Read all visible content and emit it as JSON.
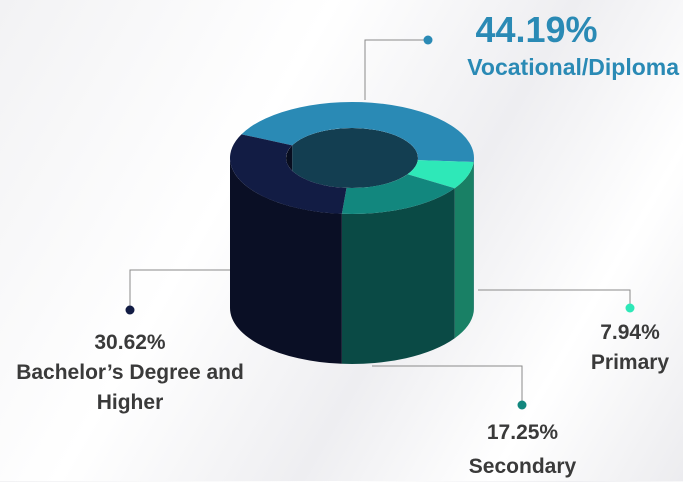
{
  "chart_data": {
    "type": "pie",
    "donut": true,
    "categories": [
      "Vocational/Diploma",
      "Primary",
      "Secondary",
      "Bachelor’s Degree and Higher"
    ],
    "values": [
      44.19,
      7.94,
      17.25,
      30.62
    ],
    "value_labels": [
      "44.19%",
      "7.94%",
      "17.25%",
      "30.62%"
    ],
    "colors": [
      "#2a8ab5",
      "#2ee8b8",
      "#12877e",
      "#121c44"
    ]
  }
}
